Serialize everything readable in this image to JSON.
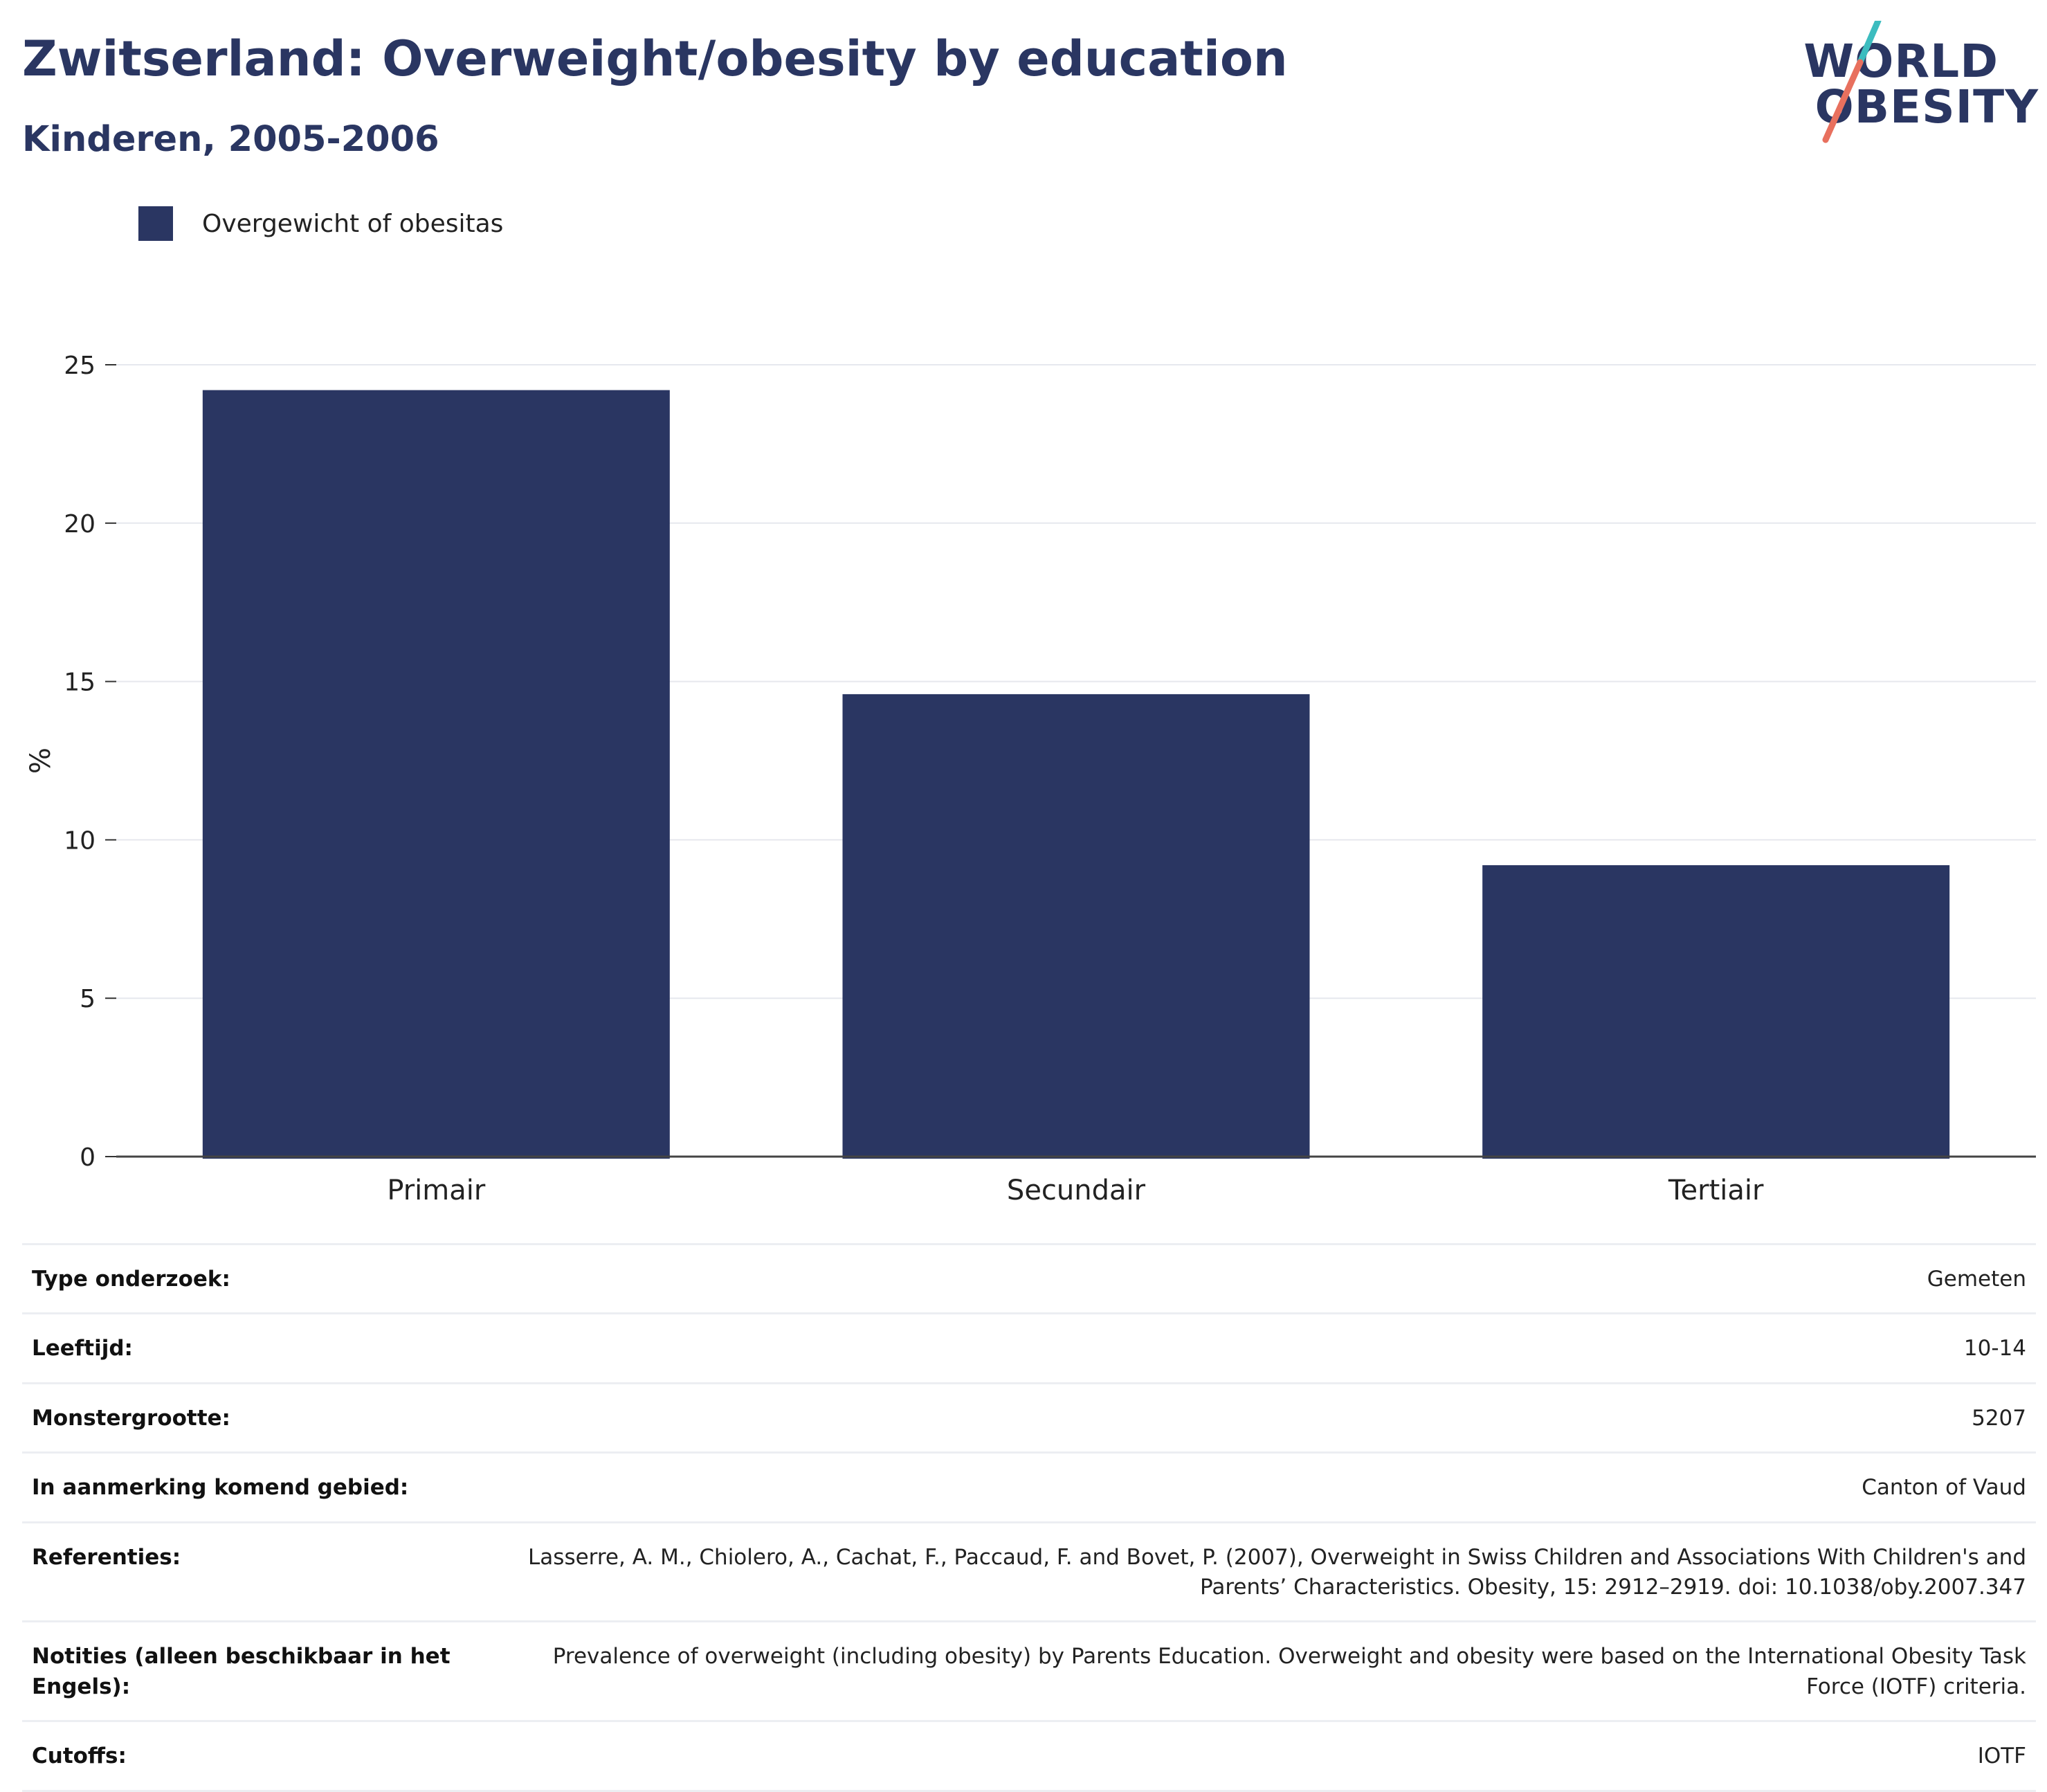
{
  "header": {
    "title": "Zwitserland: Overweight/obesity by education",
    "subtitle": "Kinderen, 2005-2006",
    "logo_line1": "WORLD",
    "logo_line2": "OBESITY"
  },
  "colors": {
    "bar": "#2a3662",
    "title": "#2a3662",
    "logo_teal": "#3cbcbf",
    "logo_coral": "#e8705e",
    "grid": "#e6e8ee"
  },
  "chart_data": {
    "type": "bar",
    "categories": [
      "Primair",
      "Secundair",
      "Tertiair"
    ],
    "series": [
      {
        "name": "Overgewicht of obesitas",
        "values": [
          24.2,
          14.6,
          9.2
        ]
      }
    ],
    "ylabel": "%",
    "ylim": [
      0,
      25
    ],
    "yticks": [
      0,
      5,
      10,
      15,
      20,
      25
    ],
    "grid": true,
    "legend_position": "top-left"
  },
  "meta": {
    "rows": [
      {
        "key": "Type onderzoek:",
        "value": "Gemeten"
      },
      {
        "key": "Leeftijd:",
        "value": "10-14"
      },
      {
        "key": "Monstergrootte:",
        "value": "5207"
      },
      {
        "key": "In aanmerking komend gebied:",
        "value": "Canton of Vaud"
      },
      {
        "key": "Referenties:",
        "value": "Lasserre, A. M., Chiolero, A., Cachat, F., Paccaud, F. and Bovet, P. (2007), Overweight in Swiss Children and Associations With Children's and Parents’ Characteristics. Obesity, 15: 2912–2919. doi: 10.1038/oby.2007.347"
      },
      {
        "key": "Notities (alleen beschikbaar in het Engels):",
        "value": "Prevalence of overweight (including obesity) by Parents Education. Overweight and obesity were based on the International Obesity Task Force (IOTF) criteria."
      },
      {
        "key": "Cutoffs:",
        "value": "IOTF"
      }
    ]
  }
}
